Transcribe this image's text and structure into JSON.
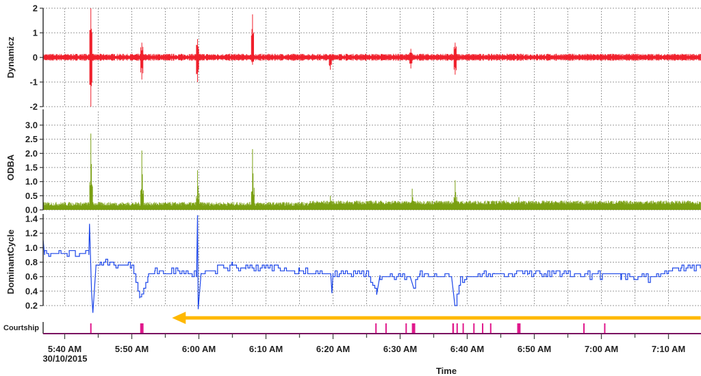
{
  "chart_data": [
    {
      "type": "line",
      "ylabel": "Dynamicz",
      "color": "#f0202c",
      "ylim": [
        -2,
        2
      ],
      "yticks": [
        "-2",
        "-1",
        "0",
        "1",
        "2"
      ],
      "baseline_noise": 0.1,
      "spikes": [
        {
          "t": "05:43:54",
          "max": 2.0,
          "min": -2.0
        },
        {
          "t": "05:51:30",
          "max": 0.6,
          "min": -0.9
        },
        {
          "t": "05:59:48",
          "max": 0.75,
          "min": -1.0
        },
        {
          "t": "06:08:00",
          "max": 1.75,
          "min": -0.3
        },
        {
          "t": "06:19:36",
          "max": 0.1,
          "min": -0.5
        },
        {
          "t": "06:31:36",
          "max": 0.35,
          "min": -0.45
        },
        {
          "t": "06:38:12",
          "max": 0.6,
          "min": -0.7
        }
      ]
    },
    {
      "type": "area",
      "ylabel": "ODBA",
      "color": "#7aa012",
      "ylim": [
        0,
        3.2
      ],
      "yticks": [
        "0.0",
        "0.5",
        "1.0",
        "1.5",
        "2.0",
        "2.5",
        "3.0"
      ],
      "baseline_level": 0.2,
      "spikes": [
        {
          "t": "05:43:54",
          "max": 2.7
        },
        {
          "t": "05:51:30",
          "max": 2.1
        },
        {
          "t": "05:59:48",
          "max": 1.4
        },
        {
          "t": "06:08:00",
          "max": 2.15
        },
        {
          "t": "06:19:36",
          "max": 0.5
        },
        {
          "t": "06:31:48",
          "max": 0.75
        },
        {
          "t": "06:38:12",
          "max": 1.05
        },
        {
          "t": "06:47:42",
          "max": 0.45
        }
      ]
    },
    {
      "type": "line",
      "ylabel": "DominantCycle",
      "color": "#1a44e8",
      "ylim": [
        0.1,
        1.45
      ],
      "yticks": [
        "0.2",
        "0.4",
        "0.6",
        "0.8",
        "1.0",
        "1.2",
        "1.4"
      ],
      "points": [
        [
          "05:36:48",
          1.1
        ],
        [
          "05:37:00",
          0.9
        ],
        [
          "05:43:36",
          0.9
        ],
        [
          "05:43:42",
          1.33
        ],
        [
          "05:44:00",
          0.4
        ],
        [
          "05:44:12",
          0.1
        ],
        [
          "05:44:40",
          0.75
        ],
        [
          "05:45:30",
          0.8
        ],
        [
          "05:50:00",
          0.75
        ],
        [
          "05:51:10",
          0.3
        ],
        [
          "05:52:30",
          0.62
        ],
        [
          "05:53:30",
          0.7
        ],
        [
          "05:59:40",
          0.65
        ],
        [
          "05:59:48",
          1.45
        ],
        [
          "05:59:54",
          0.15
        ],
        [
          "06:00:20",
          0.65
        ],
        [
          "06:05:00",
          0.75
        ],
        [
          "06:07:00",
          0.7
        ],
        [
          "06:10:00",
          0.72
        ],
        [
          "06:15:00",
          0.67
        ],
        [
          "06:19:40",
          0.62
        ],
        [
          "06:19:50",
          0.37
        ],
        [
          "06:20:00",
          0.65
        ],
        [
          "06:25:00",
          0.65
        ],
        [
          "06:26:30",
          0.35
        ],
        [
          "06:27:00",
          0.62
        ],
        [
          "06:31:30",
          0.6
        ],
        [
          "06:32:00",
          0.45
        ],
        [
          "06:33:00",
          0.62
        ],
        [
          "06:37:40",
          0.6
        ],
        [
          "06:38:10",
          0.2
        ],
        [
          "06:39:00",
          0.56
        ],
        [
          "06:41:00",
          0.6
        ],
        [
          "06:44:00",
          0.65
        ],
        [
          "06:49:00",
          0.62
        ],
        [
          "06:52:00",
          0.65
        ],
        [
          "06:58:00",
          0.62
        ],
        [
          "07:03:00",
          0.62
        ],
        [
          "07:07:00",
          0.58
        ],
        [
          "07:10:00",
          0.68
        ],
        [
          "07:12:00",
          0.72
        ],
        [
          "07:14:48",
          0.72
        ]
      ]
    },
    {
      "type": "bar",
      "ylabel": "Courtship",
      "color": "#e0188c",
      "events": [
        {
          "t": "05:43:54",
          "dur_min": 0.15
        },
        {
          "t": "05:51:30",
          "dur_min": 0.5
        },
        {
          "t": "06:26:24",
          "dur_min": 0.15
        },
        {
          "t": "06:27:54",
          "dur_min": 0.15
        },
        {
          "t": "06:30:54",
          "dur_min": 0.2
        },
        {
          "t": "06:32:00",
          "dur_min": 0.5
        },
        {
          "t": "06:37:54",
          "dur_min": 0.25
        },
        {
          "t": "06:38:30",
          "dur_min": 0.2
        },
        {
          "t": "06:39:24",
          "dur_min": 0.15
        },
        {
          "t": "06:41:00",
          "dur_min": 0.15
        },
        {
          "t": "06:42:18",
          "dur_min": 0.15
        },
        {
          "t": "06:43:30",
          "dur_min": 0.12
        },
        {
          "t": "06:47:42",
          "dur_min": 0.5
        },
        {
          "t": "06:57:24",
          "dur_min": 0.2
        },
        {
          "t": "07:00:30",
          "dur_min": 0.2
        }
      ]
    }
  ],
  "x_axis": {
    "title": "Time",
    "range": [
      "05:36:48",
      "07:14:48"
    ],
    "ticks": [
      "5:40 AM",
      "5:50 AM",
      "6:00 AM",
      "6:10 AM",
      "6:20 AM",
      "6:30 AM",
      "6:40 AM",
      "6:50 AM",
      "7:00 AM",
      "7:10 AM"
    ],
    "date_label": "30/10/2015"
  },
  "grid": true,
  "annotation": {
    "type": "arrow",
    "direction": "left",
    "color": "#ffb800",
    "from": "07:14:48",
    "to": "05:56:00"
  }
}
